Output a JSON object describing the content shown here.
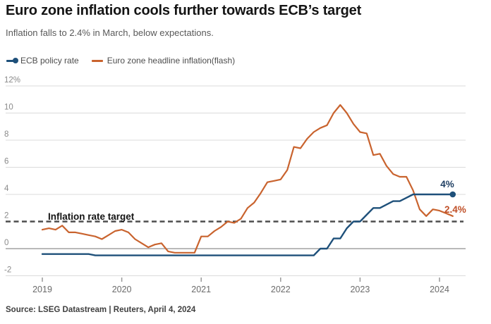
{
  "header": {
    "title": "Euro zone inflation cools further towards ECB’s target",
    "subtitle": "Inflation falls to 2.4% in March, below expectations."
  },
  "legend": [
    {
      "label": "ECB policy rate",
      "color": "#1e507a",
      "marker": "line-dot"
    },
    {
      "label": "Euro zone headline inflation(flash)",
      "color": "#c9632e",
      "marker": "line"
    }
  ],
  "source": "Source: LSEG Datastream | Reuters, April 4, 2024",
  "colors": {
    "policy_blue": "#1e507a",
    "policy_label_blue": "#1f3f63",
    "inflation_orange": "#c9632e",
    "inflation_label_orange": "#c05028",
    "target_dash": "#4d4d4d",
    "zero_line": "#8f8f8f",
    "gridline": "#dbdbdb",
    "tick_label": "#8a8a8a",
    "year_label": "#6b6b6b"
  },
  "chart_data": {
    "type": "line",
    "title": "Euro zone inflation cools further towards ECB’s target",
    "subtitle": "Inflation falls to 2.4% in March, below expectations.",
    "x_unit": "month",
    "x_start": "2019-01",
    "x_end": "2024-03",
    "x_tick_labels": [
      "2019",
      "2020",
      "2021",
      "2022",
      "2023",
      "2024"
    ],
    "ylim": [
      -2,
      12
    ],
    "grid": "horizontal",
    "legend_position": "top-left",
    "y_ticks": [
      {
        "v": 12,
        "label": "12%",
        "style": "grid"
      },
      {
        "v": 10,
        "label": "10",
        "style": "grid"
      },
      {
        "v": 8,
        "label": "8",
        "style": "grid"
      },
      {
        "v": 6,
        "label": "6",
        "style": "grid"
      },
      {
        "v": 4,
        "label": "4",
        "style": "grid"
      },
      {
        "v": 2,
        "label": "2",
        "style": "target"
      },
      {
        "v": 0,
        "label": "0",
        "style": "zero"
      },
      {
        "v": -2,
        "label": "-2",
        "style": "grid"
      }
    ],
    "target_line": {
      "value": 2,
      "label": "Inflation rate target"
    },
    "series": [
      {
        "name": "Euro zone headline inflation(flash)",
        "color": "#c9632e",
        "end_label": "2.4%",
        "end_label_color": "#c05028",
        "end_dot": false,
        "values": [
          1.4,
          1.5,
          1.4,
          1.7,
          1.2,
          1.2,
          1.1,
          1.0,
          0.9,
          0.7,
          1.0,
          1.3,
          1.4,
          1.2,
          0.7,
          0.4,
          0.1,
          0.3,
          0.4,
          -0.2,
          -0.3,
          -0.3,
          -0.3,
          -0.3,
          0.9,
          0.9,
          1.3,
          1.6,
          2.0,
          1.9,
          2.2,
          3.0,
          3.4,
          4.1,
          4.9,
          5.0,
          5.1,
          5.8,
          7.5,
          7.4,
          8.1,
          8.6,
          8.9,
          9.1,
          10.0,
          10.6,
          10.0,
          9.2,
          8.6,
          8.5,
          6.9,
          7.0,
          6.1,
          5.5,
          5.3,
          5.3,
          4.3,
          2.9,
          2.4,
          2.9,
          2.8,
          2.6,
          2.4
        ]
      },
      {
        "name": "ECB policy rate",
        "color": "#1e507a",
        "end_label": "4%",
        "end_label_color": "#1f3f63",
        "end_dot": true,
        "values": [
          -0.4,
          -0.4,
          -0.4,
          -0.4,
          -0.4,
          -0.4,
          -0.4,
          -0.4,
          -0.5,
          -0.5,
          -0.5,
          -0.5,
          -0.5,
          -0.5,
          -0.5,
          -0.5,
          -0.5,
          -0.5,
          -0.5,
          -0.5,
          -0.5,
          -0.5,
          -0.5,
          -0.5,
          -0.5,
          -0.5,
          -0.5,
          -0.5,
          -0.5,
          -0.5,
          -0.5,
          -0.5,
          -0.5,
          -0.5,
          -0.5,
          -0.5,
          -0.5,
          -0.5,
          -0.5,
          -0.5,
          -0.5,
          -0.5,
          0.0,
          0.0,
          0.75,
          0.75,
          1.5,
          2.0,
          2.0,
          2.5,
          3.0,
          3.0,
          3.25,
          3.5,
          3.5,
          3.75,
          4.0,
          4.0,
          4.0,
          4.0,
          4.0,
          4.0,
          4.0
        ]
      }
    ]
  }
}
